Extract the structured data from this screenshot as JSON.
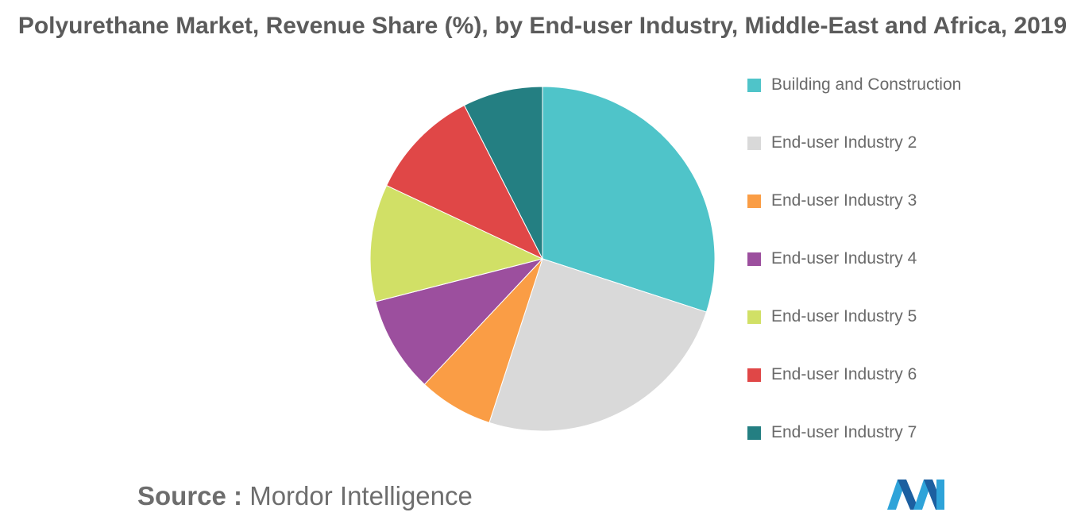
{
  "title": "Polyurethane Market, Revenue Share (%), by End-user Industry, Middle-East and Africa, 2019",
  "chart_data": {
    "type": "pie",
    "title": "Polyurethane Market, Revenue Share (%), by End-user Industry, Middle-East and Africa, 2019",
    "legend_position": "right",
    "slices": [
      {
        "label": "Building and Construction",
        "value": 30,
        "color": "#4fc4c9"
      },
      {
        "label": "End-user Industry 2",
        "value": 25,
        "color": "#d9d9d9"
      },
      {
        "label": "End-user Industry 3",
        "value": 7,
        "color": "#fa9d45"
      },
      {
        "label": "End-user Industry 4",
        "value": 9,
        "color": "#9c4f9e"
      },
      {
        "label": "End-user Industry 5",
        "value": 11,
        "color": "#d1e066"
      },
      {
        "label": "End-user Industry 6",
        "value": 10.5,
        "color": "#e04747"
      },
      {
        "label": "End-user Industry 7",
        "value": 7.5,
        "color": "#247f82"
      }
    ]
  },
  "source": {
    "label": "Source :",
    "text": "Mordor Intelligence"
  },
  "logo": {
    "icon": "mordor-intelligence-logo",
    "colors": [
      "#2ea3d9",
      "#1c5fa0"
    ]
  }
}
